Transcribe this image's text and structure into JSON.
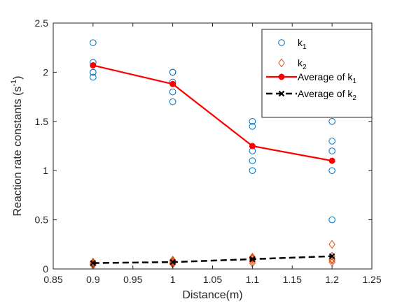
{
  "chart_data": {
    "type": "scatter",
    "xlabel": "Distance(m)",
    "ylabel": "Reaction rate constants (s",
    "ylabel_sup": "-1",
    "ylabel_close": ")",
    "xlim": [
      0.85,
      1.25
    ],
    "ylim": [
      0,
      2.5
    ],
    "xticks": [
      "0.85",
      "0.9",
      "0.95",
      "1",
      "1.05",
      "1.1",
      "1.15",
      "1.2",
      "1.25"
    ],
    "yticks": [
      "0",
      "0.5",
      "1",
      "1.5",
      "2",
      "2.5"
    ],
    "grid": false,
    "legend_position": "top-right",
    "series": [
      {
        "name": "k",
        "name_sub": "1",
        "kind": "scatter",
        "marker": "circle",
        "color": "#0072BD",
        "points": [
          [
            0.9,
            2.3
          ],
          [
            0.9,
            2.1
          ],
          [
            0.9,
            2.0
          ],
          [
            0.9,
            2.0
          ],
          [
            0.9,
            1.95
          ],
          [
            1.0,
            2.0
          ],
          [
            1.0,
            2.0
          ],
          [
            1.0,
            1.9
          ],
          [
            1.0,
            1.8
          ],
          [
            1.0,
            1.7
          ],
          [
            1.1,
            1.5
          ],
          [
            1.1,
            1.45
          ],
          [
            1.1,
            1.2
          ],
          [
            1.1,
            1.1
          ],
          [
            1.1,
            1.0
          ],
          [
            1.2,
            1.5
          ],
          [
            1.2,
            1.3
          ],
          [
            1.2,
            1.2
          ],
          [
            1.2,
            1.0
          ],
          [
            1.2,
            0.5
          ]
        ]
      },
      {
        "name": "k",
        "name_sub": "2",
        "kind": "scatter",
        "marker": "diamond",
        "color": "#D95319",
        "points": [
          [
            0.9,
            0.07
          ],
          [
            0.9,
            0.06
          ],
          [
            0.9,
            0.05
          ],
          [
            0.9,
            0.05
          ],
          [
            0.9,
            0.04
          ],
          [
            1.0,
            0.09
          ],
          [
            1.0,
            0.08
          ],
          [
            1.0,
            0.07
          ],
          [
            1.0,
            0.06
          ],
          [
            1.0,
            0.05
          ],
          [
            1.1,
            0.12
          ],
          [
            1.1,
            0.11
          ],
          [
            1.1,
            0.1
          ],
          [
            1.1,
            0.08
          ],
          [
            1.1,
            0.06
          ],
          [
            1.2,
            0.25
          ],
          [
            1.2,
            0.13
          ],
          [
            1.2,
            0.1
          ],
          [
            1.2,
            0.09
          ],
          [
            1.2,
            0.07
          ]
        ]
      },
      {
        "name": "Average of k",
        "name_sub": "1",
        "kind": "line",
        "marker": "dot",
        "color": "#FF0000",
        "x": [
          0.9,
          1.0,
          1.1,
          1.2
        ],
        "values": [
          2.07,
          1.88,
          1.25,
          1.1
        ]
      },
      {
        "name": "Average of k",
        "name_sub": "2",
        "kind": "line",
        "marker": "x",
        "dashed": true,
        "color": "#000000",
        "x": [
          0.9,
          1.0,
          1.1,
          1.2
        ],
        "values": [
          0.06,
          0.07,
          0.1,
          0.13
        ]
      }
    ]
  }
}
